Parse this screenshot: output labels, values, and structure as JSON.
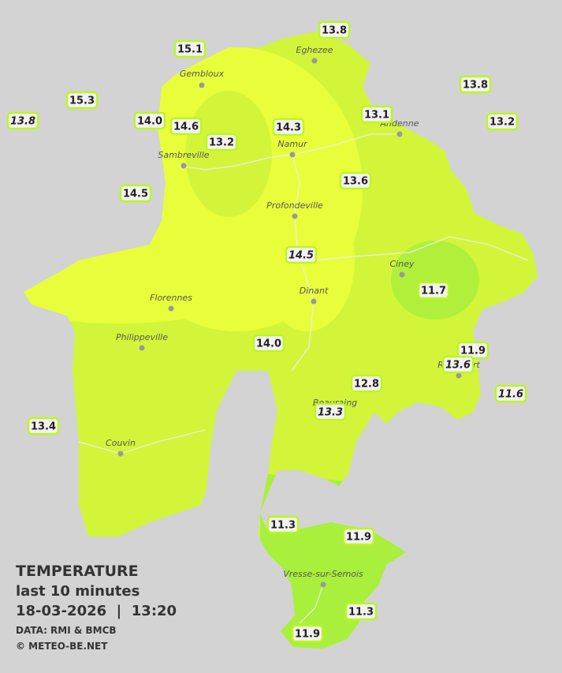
{
  "legend": {
    "title": "TEMPERATURE",
    "subtitle": "last 10 minutes",
    "datetime": "18-03-2026  |  13:20",
    "source": "DATA: RMI & BMCB",
    "copyright": "© METEO-BE.NET"
  },
  "cities": [
    "Eghezee",
    "Gembloux",
    "Andenne",
    "Namur",
    "Sambreville",
    "Profondeville",
    "Ciney",
    "Dinant",
    "Florennes",
    "Philippeville",
    "Rochefort",
    "Beauraing",
    "Couvin",
    "Vresse-sur-Semois"
  ],
  "stations": [
    {
      "value": "13.8",
      "italic": false
    },
    {
      "value": "15.1",
      "italic": false
    },
    {
      "value": "15.3",
      "italic": false
    },
    {
      "value": "13.8",
      "italic": false
    },
    {
      "value": "13.8",
      "italic": true
    },
    {
      "value": "14.0",
      "italic": false
    },
    {
      "value": "14.6",
      "italic": false
    },
    {
      "value": "14.3",
      "italic": false
    },
    {
      "value": "13.1",
      "italic": false
    },
    {
      "value": "13.2",
      "italic": false
    },
    {
      "value": "13.2",
      "italic": false
    },
    {
      "value": "13.6",
      "italic": false
    },
    {
      "value": "14.5",
      "italic": false
    },
    {
      "value": "14.5",
      "italic": true
    },
    {
      "value": "11.7",
      "italic": false
    },
    {
      "value": "14.0",
      "italic": false
    },
    {
      "value": "11.9",
      "italic": false
    },
    {
      "value": "13.6",
      "italic": true
    },
    {
      "value": "12.8",
      "italic": false
    },
    {
      "value": "11.6",
      "italic": true
    },
    {
      "value": "13.3",
      "italic": true
    },
    {
      "value": "13.4",
      "italic": false
    },
    {
      "value": "11.3",
      "italic": false
    },
    {
      "value": "11.9",
      "italic": false
    },
    {
      "value": "11.3",
      "italic": false
    },
    {
      "value": "11.9",
      "italic": false
    }
  ]
}
